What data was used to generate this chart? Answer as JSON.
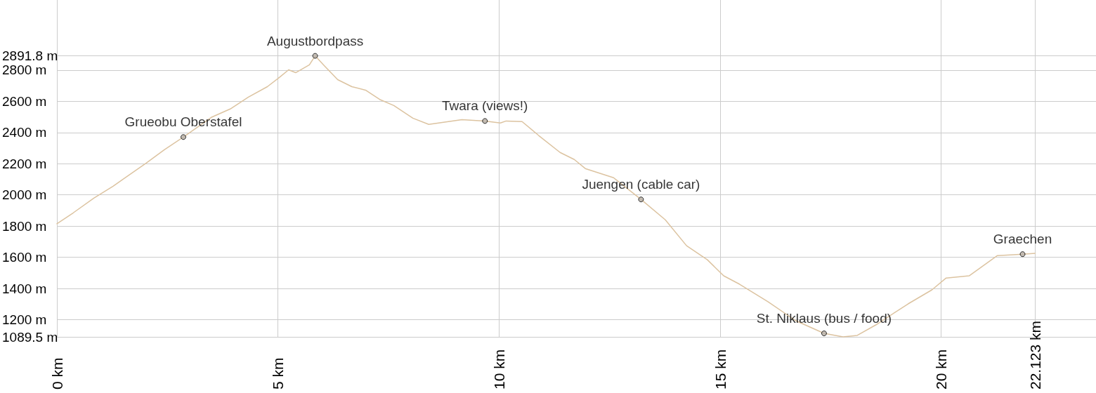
{
  "chart_data": {
    "type": "line",
    "x": [
      0,
      0.37,
      0.84,
      1.27,
      2.02,
      2.43,
      2.86,
      3.49,
      3.92,
      4.33,
      4.76,
      5.03,
      5.24,
      5.4,
      5.71,
      5.84,
      6.03,
      6.35,
      6.67,
      6.98,
      7.3,
      7.62,
      8.05,
      8.41,
      9.16,
      9.68,
      10.03,
      10.16,
      10.52,
      10.9,
      11.38,
      11.7,
      11.95,
      12.59,
      13.21,
      13.76,
      14.24,
      14.71,
      15.08,
      15.44,
      16.08,
      16.71,
      17.35,
      17.78,
      18.1,
      18.52,
      19.25,
      19.79,
      20.11,
      20.63,
      21.27,
      21.84,
      22.123
    ],
    "series": [
      {
        "color": "#dcc3a0",
        "values": [
          1815,
          1885,
          1980,
          2056,
          2204,
          2290,
          2371,
          2497,
          2551,
          2627,
          2694,
          2753,
          2802,
          2784,
          2834,
          2891.8,
          2834,
          2739,
          2694,
          2672,
          2612,
          2573,
          2492,
          2452,
          2483,
          2474,
          2461,
          2474,
          2470,
          2380,
          2272,
          2227,
          2169,
          2110,
          1971,
          1840,
          1674,
          1584,
          1481,
          1427,
          1315,
          1193,
          1112,
          1089.5,
          1099,
          1166,
          1301,
          1391,
          1467,
          1481,
          1611,
          1620,
          1625
        ]
      }
    ],
    "annotations": [
      {
        "text": "Grueobu Oberstafel",
        "x": 2.86,
        "y": 2371
      },
      {
        "text": "Augustbordpass",
        "x": 5.84,
        "y": 2891.8
      },
      {
        "text": "Twara (views!)",
        "x": 9.68,
        "y": 2474
      },
      {
        "text": "Juengen (cable car)",
        "x": 13.21,
        "y": 1971
      },
      {
        "text": "St. Niklaus (bus / food)",
        "x": 17.35,
        "y": 1112
      },
      {
        "text": "Graechen",
        "x": 21.84,
        "y": 1620
      }
    ],
    "xlim": [
      0,
      23.5
    ],
    "xticks": [
      {
        "value": 0,
        "label": "0 km"
      },
      {
        "value": 5,
        "label": "5 km"
      },
      {
        "value": 10,
        "label": "10 km"
      },
      {
        "value": 15,
        "label": "15 km"
      },
      {
        "value": 20,
        "label": "20 km"
      },
      {
        "value": 22.123,
        "label": "22.123 km"
      }
    ],
    "ylim": [
      1089.5,
      3250
    ],
    "yticks": [
      {
        "value": 1089.5,
        "label": "1089.5 m"
      },
      {
        "value": 1200,
        "label": "1200 m"
      },
      {
        "value": 1400,
        "label": "1400 m"
      },
      {
        "value": 1600,
        "label": "1600 m"
      },
      {
        "value": 1800,
        "label": "1800 m"
      },
      {
        "value": 2000,
        "label": "2000 m"
      },
      {
        "value": 2200,
        "label": "2200 m"
      },
      {
        "value": 2400,
        "label": "2400 m"
      },
      {
        "value": 2600,
        "label": "2600 m"
      },
      {
        "value": 2800,
        "label": "2800 m"
      },
      {
        "value": 2891.8,
        "label": "2891.8 m"
      }
    ],
    "grid": true,
    "marker": "none",
    "line_style": "solid"
  }
}
